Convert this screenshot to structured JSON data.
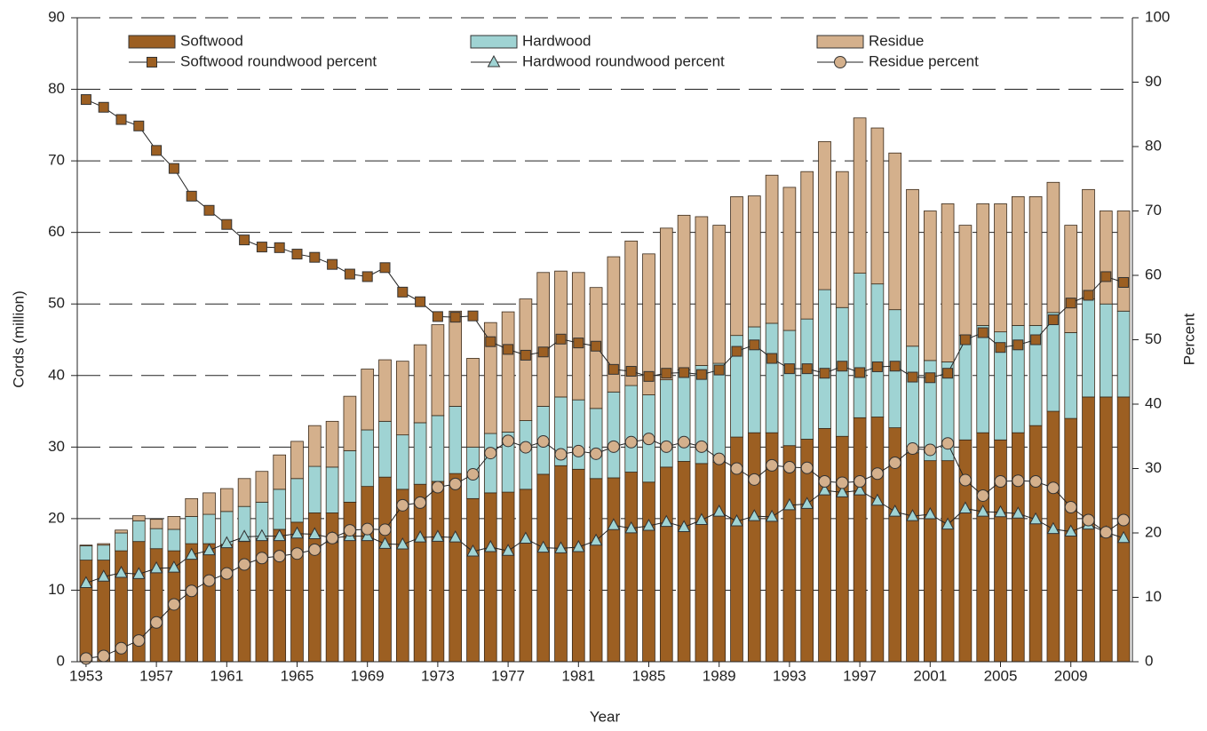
{
  "chart_data": {
    "type": "bar",
    "stacked": true,
    "x": [
      1953,
      1954,
      1955,
      1956,
      1957,
      1958,
      1959,
      1960,
      1961,
      1962,
      1963,
      1964,
      1965,
      1966,
      1967,
      1968,
      1969,
      1970,
      1971,
      1972,
      1973,
      1974,
      1975,
      1976,
      1977,
      1978,
      1979,
      1980,
      1981,
      1982,
      1983,
      1984,
      1985,
      1986,
      1987,
      1988,
      1989,
      1990,
      1991,
      1992,
      1993,
      1994,
      1995,
      1996,
      1997,
      1998,
      1999,
      2000,
      2001,
      2002,
      2003,
      2004,
      2005,
      2006,
      2007,
      2008,
      2009,
      2010,
      2011,
      2012
    ],
    "xlim": [
      1952.5,
      2012.5
    ],
    "xticks": [
      1953,
      1957,
      1961,
      1965,
      1969,
      1973,
      1977,
      1981,
      1985,
      1989,
      1993,
      1997,
      2001,
      2005,
      2009
    ],
    "xlabel": "Year",
    "ylabel": "Cords (million)",
    "y2label": "Percent",
    "ylim": [
      0,
      90
    ],
    "yticks": [
      0,
      10,
      20,
      30,
      40,
      50,
      60,
      70,
      80,
      90
    ],
    "y2lim": [
      0,
      100
    ],
    "y2ticks": [
      0,
      10,
      20,
      30,
      40,
      50,
      60,
      70,
      80,
      90,
      100
    ],
    "grid": true,
    "legend": "top",
    "series": [
      {
        "name": "Softwood",
        "type": "bar",
        "color": "#9c5f22",
        "values": [
          14.2,
          14.2,
          15.5,
          16.8,
          15.8,
          15.5,
          16.5,
          16.5,
          16.4,
          16.8,
          17.2,
          18.5,
          19.5,
          20.8,
          20.8,
          22.3,
          24.5,
          25.8,
          24.1,
          24.8,
          25.2,
          26.3,
          22.8,
          23.6,
          23.7,
          24.1,
          26.2,
          27.4,
          26.9,
          25.6,
          25.7,
          26.5,
          25.1,
          27.2,
          28.0,
          27.7,
          27.9,
          31.4,
          32.0,
          32.0,
          30.2,
          31.1,
          32.6,
          31.5,
          34.1,
          34.2,
          32.7,
          29.2,
          28.1,
          28.1,
          31.0,
          32.0,
          31.0,
          32.0,
          33.0,
          35.0,
          34.0,
          37.0,
          37.0,
          37.0
        ]
      },
      {
        "name": "Hardwood",
        "type": "bar",
        "color": "#9fd3d3",
        "values": [
          2.0,
          2.1,
          2.5,
          2.9,
          2.8,
          3.0,
          3.8,
          4.1,
          4.6,
          4.9,
          5.1,
          5.6,
          6.1,
          6.5,
          6.4,
          7.2,
          7.9,
          7.8,
          7.6,
          8.6,
          9.2,
          9.4,
          7.2,
          8.3,
          8.4,
          9.6,
          9.5,
          9.6,
          9.7,
          9.8,
          12.0,
          12.1,
          12.2,
          12.2,
          12.8,
          13.7,
          13.8,
          14.2,
          14.8,
          15.3,
          16.1,
          16.8,
          19.4,
          18.0,
          20.2,
          18.6,
          16.5,
          14.9,
          14.0,
          13.8,
          14.6,
          15.0,
          15.1,
          15.0,
          14.0,
          13.8,
          12.0,
          13.7,
          13.0,
          12.0
        ]
      },
      {
        "name": "Residue",
        "type": "bar",
        "color": "#d4b08c",
        "values": [
          0.1,
          0.2,
          0.4,
          0.7,
          1.3,
          1.8,
          2.5,
          3.0,
          3.2,
          3.9,
          4.3,
          4.8,
          5.2,
          5.7,
          6.4,
          7.6,
          8.5,
          8.6,
          10.3,
          10.9,
          12.7,
          13.3,
          12.4,
          15.5,
          16.8,
          17.0,
          18.7,
          17.6,
          17.8,
          16.9,
          18.9,
          20.2,
          19.7,
          21.2,
          21.6,
          20.8,
          19.3,
          19.4,
          18.3,
          20.7,
          20.0,
          20.6,
          20.7,
          19.0,
          21.7,
          21.8,
          21.9,
          21.9,
          20.9,
          22.1,
          15.4,
          17.0,
          17.9,
          18.0,
          18.0,
          18.2,
          15.0,
          15.3,
          13.0,
          14.0
        ]
      },
      {
        "name": "Softwood roundwood percent",
        "type": "line",
        "axis": "y2",
        "marker": "square",
        "color": "#9c5f22",
        "values": [
          87.3,
          86.1,
          84.2,
          83.2,
          79.4,
          76.6,
          72.3,
          70.1,
          67.9,
          65.5,
          64.4,
          64.3,
          63.3,
          62.8,
          61.7,
          60.2,
          59.8,
          61.2,
          57.4,
          55.9,
          53.6,
          53.5,
          53.7,
          49.7,
          48.5,
          47.6,
          48.1,
          50.1,
          49.5,
          49.0,
          45.4,
          45.1,
          44.3,
          44.8,
          44.9,
          44.6,
          45.3,
          48.2,
          49.2,
          47.1,
          45.5,
          45.5,
          44.8,
          45.9,
          44.9,
          45.8,
          45.9,
          44.2,
          44.1,
          44.8,
          50.0,
          51.1,
          48.8,
          49.2,
          50.0,
          53.1,
          55.7,
          56.9,
          59.8,
          58.9
        ]
      },
      {
        "name": "Hardwood roundwood percent",
        "type": "line",
        "axis": "y2",
        "marker": "triangle",
        "color": "#9fd3d3",
        "values": [
          12.2,
          13.2,
          13.8,
          13.6,
          14.5,
          14.6,
          16.6,
          17.3,
          18.4,
          19.4,
          19.5,
          19.5,
          19.9,
          19.8,
          19.2,
          19.5,
          19.5,
          18.3,
          18.2,
          19.3,
          19.4,
          19.3,
          17.1,
          17.8,
          17.2,
          19.1,
          17.7,
          17.6,
          17.8,
          18.8,
          21.2,
          20.7,
          21.1,
          21.7,
          20.9,
          22.0,
          23.3,
          21.8,
          22.6,
          22.5,
          24.3,
          24.5,
          26.6,
          26.3,
          26.6,
          25.0,
          23.3,
          22.6,
          22.9,
          21.3,
          23.8,
          23.3,
          23.2,
          23.0,
          22.1,
          20.6,
          20.2,
          21.3,
          20.1,
          19.2
        ]
      },
      {
        "name": "Residue percent",
        "type": "line",
        "axis": "y2",
        "marker": "circle",
        "color": "#d4b08c",
        "values": [
          0.5,
          0.9,
          2.1,
          3.3,
          6.1,
          8.9,
          11.0,
          12.6,
          13.7,
          15.1,
          16.1,
          16.4,
          16.8,
          17.4,
          19.2,
          20.4,
          20.6,
          20.5,
          24.3,
          24.7,
          27.1,
          27.6,
          29.1,
          32.4,
          34.3,
          33.3,
          34.2,
          32.2,
          32.7,
          32.3,
          33.4,
          34.1,
          34.6,
          33.4,
          34.1,
          33.4,
          31.5,
          30.0,
          28.3,
          30.5,
          30.2,
          30.1,
          28.0,
          27.8,
          28.0,
          29.2,
          30.9,
          33.1,
          32.9,
          33.9,
          28.2,
          25.8,
          28.0,
          28.1,
          28.0,
          27.0,
          24.0,
          22.0,
          20.1,
          22.0
        ]
      }
    ]
  }
}
